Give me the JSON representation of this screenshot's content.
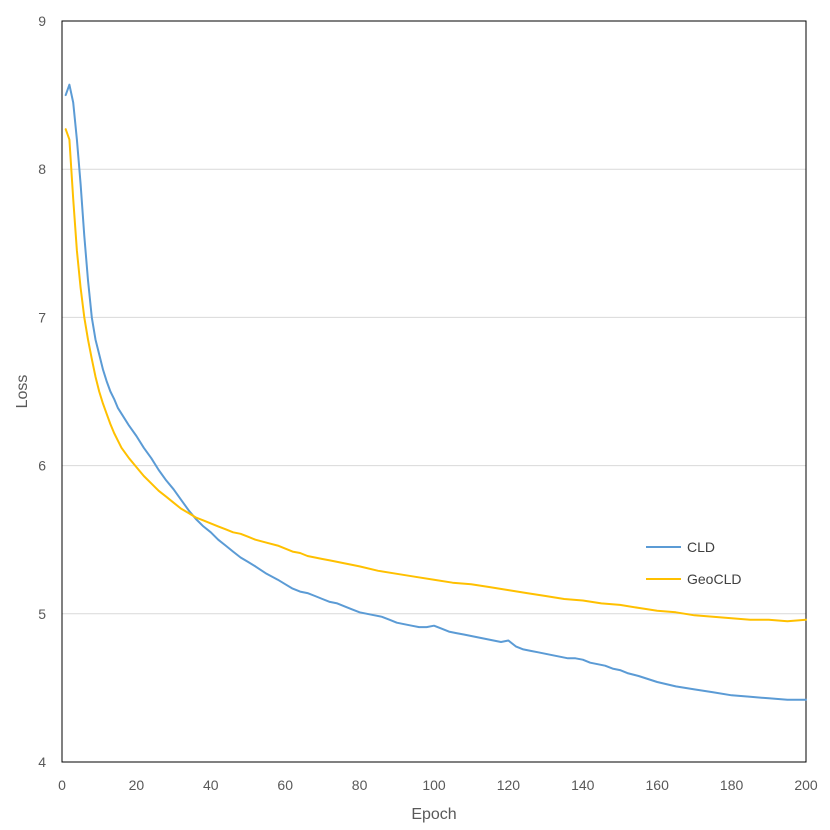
{
  "chart_data": {
    "type": "line",
    "title": "",
    "xlabel": "Epoch",
    "ylabel": "Loss",
    "xlim": [
      0,
      200
    ],
    "ylim": [
      4,
      9
    ],
    "xticks": [
      0,
      20,
      40,
      60,
      80,
      100,
      120,
      140,
      160,
      180,
      200
    ],
    "yticks": [
      4,
      5,
      6,
      7,
      8,
      9
    ],
    "grid": "horizontal",
    "legend_position": "right",
    "series": [
      {
        "name": "CLD",
        "color": "#5B9BD5",
        "x": [
          1,
          2,
          3,
          4,
          5,
          6,
          7,
          8,
          9,
          10,
          11,
          12,
          13,
          14,
          15,
          16,
          18,
          20,
          22,
          24,
          26,
          28,
          30,
          32,
          34,
          36,
          38,
          40,
          42,
          44,
          46,
          48,
          50,
          52,
          55,
          58,
          60,
          62,
          64,
          66,
          68,
          70,
          72,
          74,
          76,
          78,
          80,
          82,
          84,
          86,
          88,
          90,
          92,
          94,
          96,
          98,
          100,
          102,
          104,
          106,
          108,
          110,
          112,
          114,
          116,
          118,
          120,
          122,
          124,
          126,
          128,
          130,
          132,
          134,
          136,
          138,
          140,
          142,
          144,
          146,
          148,
          150,
          152,
          155,
          160,
          165,
          170,
          175,
          180,
          185,
          190,
          195,
          200
        ],
        "y": [
          8.5,
          8.57,
          8.45,
          8.2,
          7.9,
          7.55,
          7.25,
          7.0,
          6.85,
          6.75,
          6.65,
          6.57,
          6.5,
          6.45,
          6.39,
          6.35,
          6.27,
          6.2,
          6.12,
          6.05,
          5.97,
          5.9,
          5.84,
          5.77,
          5.7,
          5.64,
          5.59,
          5.55,
          5.5,
          5.46,
          5.42,
          5.38,
          5.35,
          5.32,
          5.27,
          5.23,
          5.2,
          5.17,
          5.15,
          5.14,
          5.12,
          5.1,
          5.08,
          5.07,
          5.05,
          5.03,
          5.01,
          5.0,
          4.99,
          4.98,
          4.96,
          4.94,
          4.93,
          4.92,
          4.91,
          4.91,
          4.92,
          4.9,
          4.88,
          4.87,
          4.86,
          4.85,
          4.84,
          4.83,
          4.82,
          4.81,
          4.82,
          4.78,
          4.76,
          4.75,
          4.74,
          4.73,
          4.72,
          4.71,
          4.7,
          4.7,
          4.69,
          4.67,
          4.66,
          4.65,
          4.63,
          4.62,
          4.6,
          4.58,
          4.54,
          4.51,
          4.49,
          4.47,
          4.45,
          4.44,
          4.43,
          4.42,
          4.42
        ]
      },
      {
        "name": "GeoCLD",
        "color": "#FFC000",
        "x": [
          1,
          2,
          3,
          4,
          5,
          6,
          7,
          8,
          9,
          10,
          11,
          12,
          13,
          14,
          15,
          16,
          18,
          20,
          22,
          24,
          26,
          28,
          30,
          32,
          34,
          36,
          38,
          40,
          42,
          44,
          46,
          48,
          50,
          52,
          55,
          58,
          60,
          62,
          64,
          66,
          68,
          70,
          72,
          74,
          76,
          78,
          80,
          85,
          90,
          95,
          100,
          105,
          110,
          115,
          120,
          125,
          130,
          135,
          140,
          145,
          150,
          155,
          160,
          165,
          170,
          175,
          180,
          185,
          190,
          195,
          200
        ],
        "y": [
          8.27,
          8.2,
          7.8,
          7.45,
          7.2,
          7.0,
          6.85,
          6.72,
          6.6,
          6.5,
          6.42,
          6.35,
          6.28,
          6.22,
          6.17,
          6.12,
          6.05,
          5.99,
          5.93,
          5.88,
          5.83,
          5.79,
          5.75,
          5.71,
          5.68,
          5.65,
          5.63,
          5.61,
          5.59,
          5.57,
          5.55,
          5.54,
          5.52,
          5.5,
          5.48,
          5.46,
          5.44,
          5.42,
          5.41,
          5.39,
          5.38,
          5.37,
          5.36,
          5.35,
          5.34,
          5.33,
          5.32,
          5.29,
          5.27,
          5.25,
          5.23,
          5.21,
          5.2,
          5.18,
          5.16,
          5.14,
          5.12,
          5.1,
          5.09,
          5.07,
          5.06,
          5.04,
          5.02,
          5.01,
          4.99,
          4.98,
          4.97,
          4.96,
          4.96,
          4.95,
          4.96
        ]
      }
    ]
  }
}
